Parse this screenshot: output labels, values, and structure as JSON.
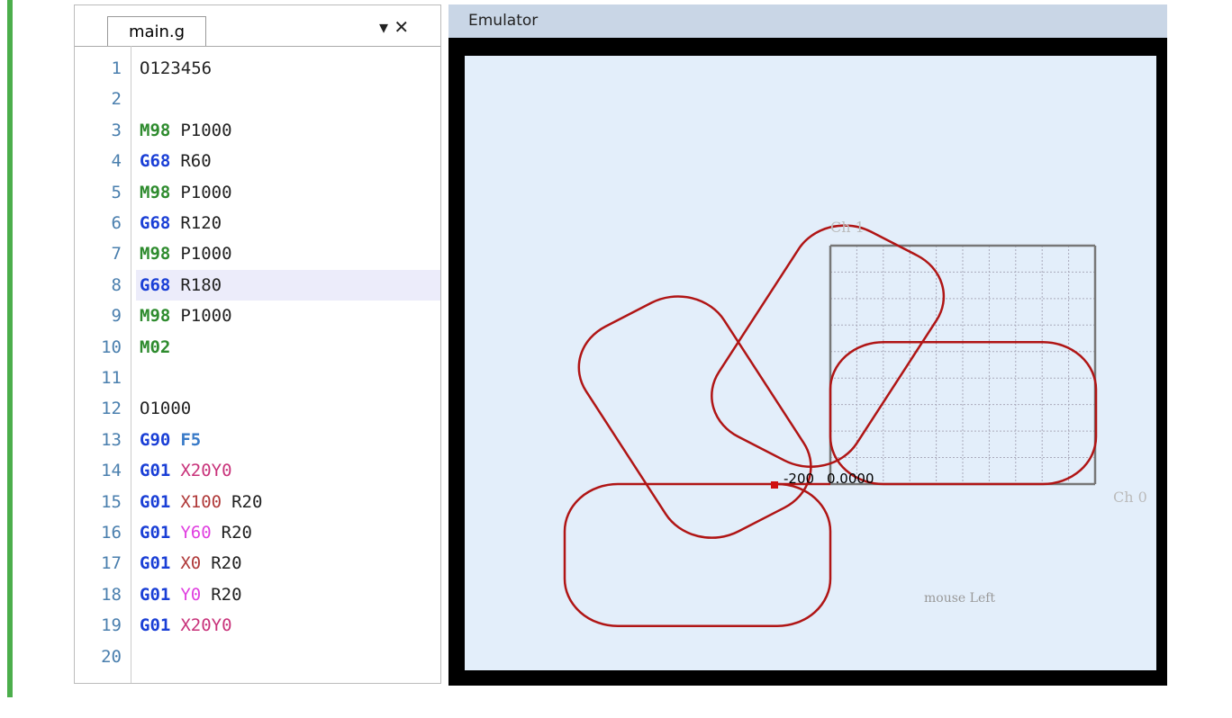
{
  "editor": {
    "tab": "main.g",
    "lines": [
      {
        "number": "1",
        "tokens": [
          {
            "text": "O123456",
            "kind": "plain"
          }
        ]
      },
      {
        "number": "2",
        "tokens": []
      },
      {
        "number": "3",
        "tokens": [
          {
            "text": "M98",
            "kind": "m"
          },
          {
            "text": "P1000",
            "kind": "plain"
          }
        ]
      },
      {
        "number": "4",
        "tokens": [
          {
            "text": "G68",
            "kind": "g"
          },
          {
            "text": "R60",
            "kind": "plain"
          }
        ]
      },
      {
        "number": "5",
        "tokens": [
          {
            "text": "M98",
            "kind": "m"
          },
          {
            "text": "P1000",
            "kind": "plain"
          }
        ]
      },
      {
        "number": "6",
        "tokens": [
          {
            "text": "G68",
            "kind": "g"
          },
          {
            "text": "R120",
            "kind": "plain"
          }
        ]
      },
      {
        "number": "7",
        "tokens": [
          {
            "text": "M98",
            "kind": "m"
          },
          {
            "text": "P1000",
            "kind": "plain"
          }
        ]
      },
      {
        "number": "8",
        "tokens": [
          {
            "text": "G68",
            "kind": "g"
          },
          {
            "text": "R180",
            "kind": "plain"
          }
        ],
        "current": true
      },
      {
        "number": "9",
        "tokens": [
          {
            "text": "M98",
            "kind": "m"
          },
          {
            "text": "P1000",
            "kind": "plain"
          }
        ]
      },
      {
        "number": "10",
        "tokens": [
          {
            "text": "M02",
            "kind": "m"
          }
        ]
      },
      {
        "number": "11",
        "tokens": []
      },
      {
        "number": "12",
        "tokens": [
          {
            "text": "O1000",
            "kind": "plain"
          }
        ]
      },
      {
        "number": "13",
        "tokens": [
          {
            "text": "G90",
            "kind": "g"
          },
          {
            "text": "F5",
            "kind": "f"
          }
        ]
      },
      {
        "number": "14",
        "tokens": [
          {
            "text": "G01",
            "kind": "g"
          },
          {
            "text": "X20Y0",
            "kind": "xy"
          }
        ]
      },
      {
        "number": "15",
        "tokens": [
          {
            "text": "G01",
            "kind": "g"
          },
          {
            "text": "X100",
            "kind": "x"
          },
          {
            "text": "R20",
            "kind": "plain"
          }
        ]
      },
      {
        "number": "16",
        "tokens": [
          {
            "text": "G01",
            "kind": "g"
          },
          {
            "text": "Y60",
            "kind": "y"
          },
          {
            "text": "R20",
            "kind": "plain"
          }
        ]
      },
      {
        "number": "17",
        "tokens": [
          {
            "text": "G01",
            "kind": "g"
          },
          {
            "text": "X0",
            "kind": "x"
          },
          {
            "text": "R20",
            "kind": "plain"
          }
        ]
      },
      {
        "number": "18",
        "tokens": [
          {
            "text": "G01",
            "kind": "g"
          },
          {
            "text": "Y0",
            "kind": "y"
          },
          {
            "text": "R20",
            "kind": "plain"
          }
        ]
      },
      {
        "number": "19",
        "tokens": [
          {
            "text": "G01",
            "kind": "g"
          },
          {
            "text": "X20Y0",
            "kind": "xy"
          }
        ]
      },
      {
        "number": "20",
        "tokens": []
      }
    ]
  },
  "emulator": {
    "title": "Emulator",
    "labels": {
      "ch1": "Ch 1",
      "ch0": "Ch 0",
      "x_min": "-200",
      "origin": "0.0000",
      "status": "mouse Left"
    }
  }
}
